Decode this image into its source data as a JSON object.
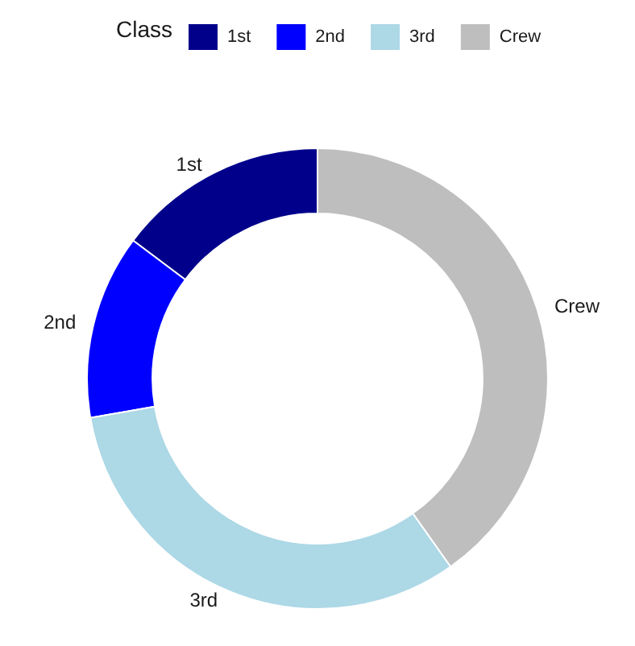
{
  "chart_data": {
    "type": "donut",
    "legend_title": "Class",
    "legend": "top",
    "categories": [
      "1st",
      "2nd",
      "3rd",
      "Crew"
    ],
    "values": [
      14.77,
      12.95,
      32.08,
      40.2
    ],
    "colors": [
      "#00008b",
      "#0000ff",
      "#add8e6",
      "#bebebe"
    ]
  }
}
